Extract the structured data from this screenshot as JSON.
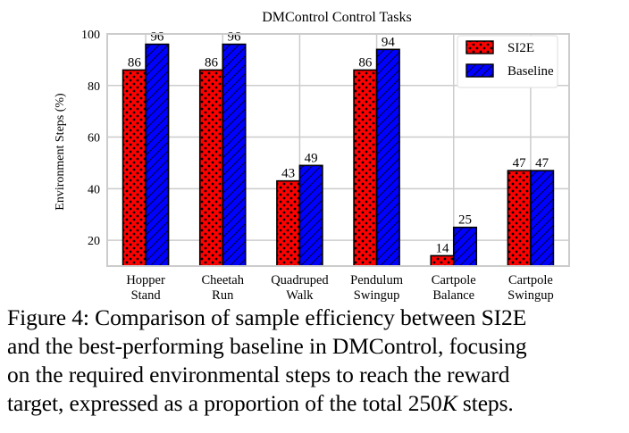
{
  "chart_data": {
    "type": "bar",
    "title": "DMControl Control Tasks",
    "xlabel": "",
    "ylabel": "Environment Steps (%)",
    "ylim": [
      10,
      100
    ],
    "yticks": [
      20,
      40,
      60,
      80,
      100
    ],
    "grid": true,
    "legend_position": "top-right",
    "categories": [
      [
        "Hopper",
        "Stand"
      ],
      [
        "Cheetah",
        "Run"
      ],
      [
        "Quadruped",
        "Walk"
      ],
      [
        "Pendulum",
        "Swingup"
      ],
      [
        "Cartpole",
        "Balance"
      ],
      [
        "Cartpole",
        "Swingup"
      ]
    ],
    "series": [
      {
        "name": "SI2E",
        "values": [
          86,
          86,
          43,
          86,
          14,
          47
        ],
        "color": "#ff0000",
        "pattern": "dots"
      },
      {
        "name": "Baseline",
        "values": [
          96,
          96,
          49,
          94,
          25,
          47
        ],
        "color": "#0000ff",
        "pattern": "hatch"
      }
    ]
  },
  "caption": {
    "lines": [
      "Figure 4: Comparison of sample efficiency between SI2E",
      "and the best-performing baseline in DMControl, focusing",
      "on the required environmental steps to reach the reward"
    ],
    "last_prefix": "target, expressed as a proportion of the total ",
    "last_number": "250",
    "last_unit": "K",
    "last_suffix": " steps."
  }
}
